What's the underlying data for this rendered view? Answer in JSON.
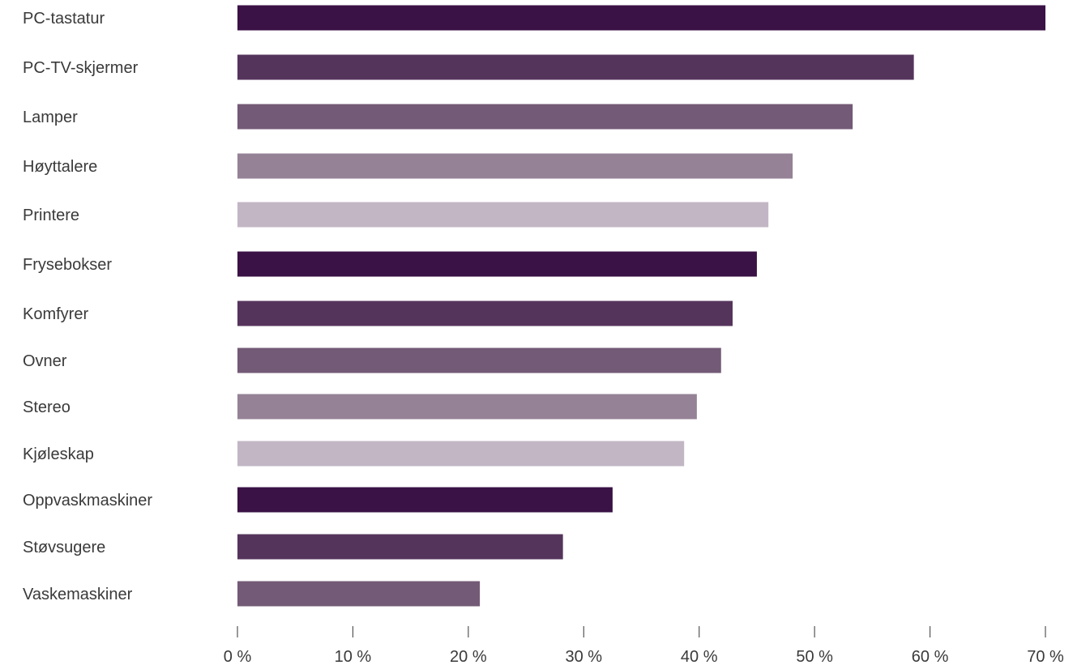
{
  "chart_data": {
    "type": "bar",
    "orientation": "horizontal",
    "categories": [
      "PC-tastatur",
      "PC-TV-skjermer",
      "Lamper",
      "Høyttalere",
      "Printere",
      "Frysebokser",
      "Komfyrer",
      "Ovner",
      "Stereo",
      "Kjøleskap",
      "Oppvaskmaskiner",
      "Støvsugere",
      "Vaskemaskiner"
    ],
    "values": [
      70,
      58.6,
      53.3,
      48.1,
      46,
      45,
      42.9,
      41.9,
      39.8,
      38.7,
      32.5,
      28.2,
      21
    ],
    "xlim": [
      0,
      70
    ],
    "xticks": [
      0,
      10,
      20,
      30,
      40,
      50,
      60,
      70
    ],
    "xtick_labels": [
      "0 %",
      "10 %",
      "20 %",
      "30 %",
      "40 %",
      "50 %",
      "60 %",
      "70 %"
    ],
    "grid": false,
    "bar_colors": [
      "#3a1245",
      "#55345c",
      "#735a76",
      "#958296",
      "#c2b6c5"
    ]
  }
}
